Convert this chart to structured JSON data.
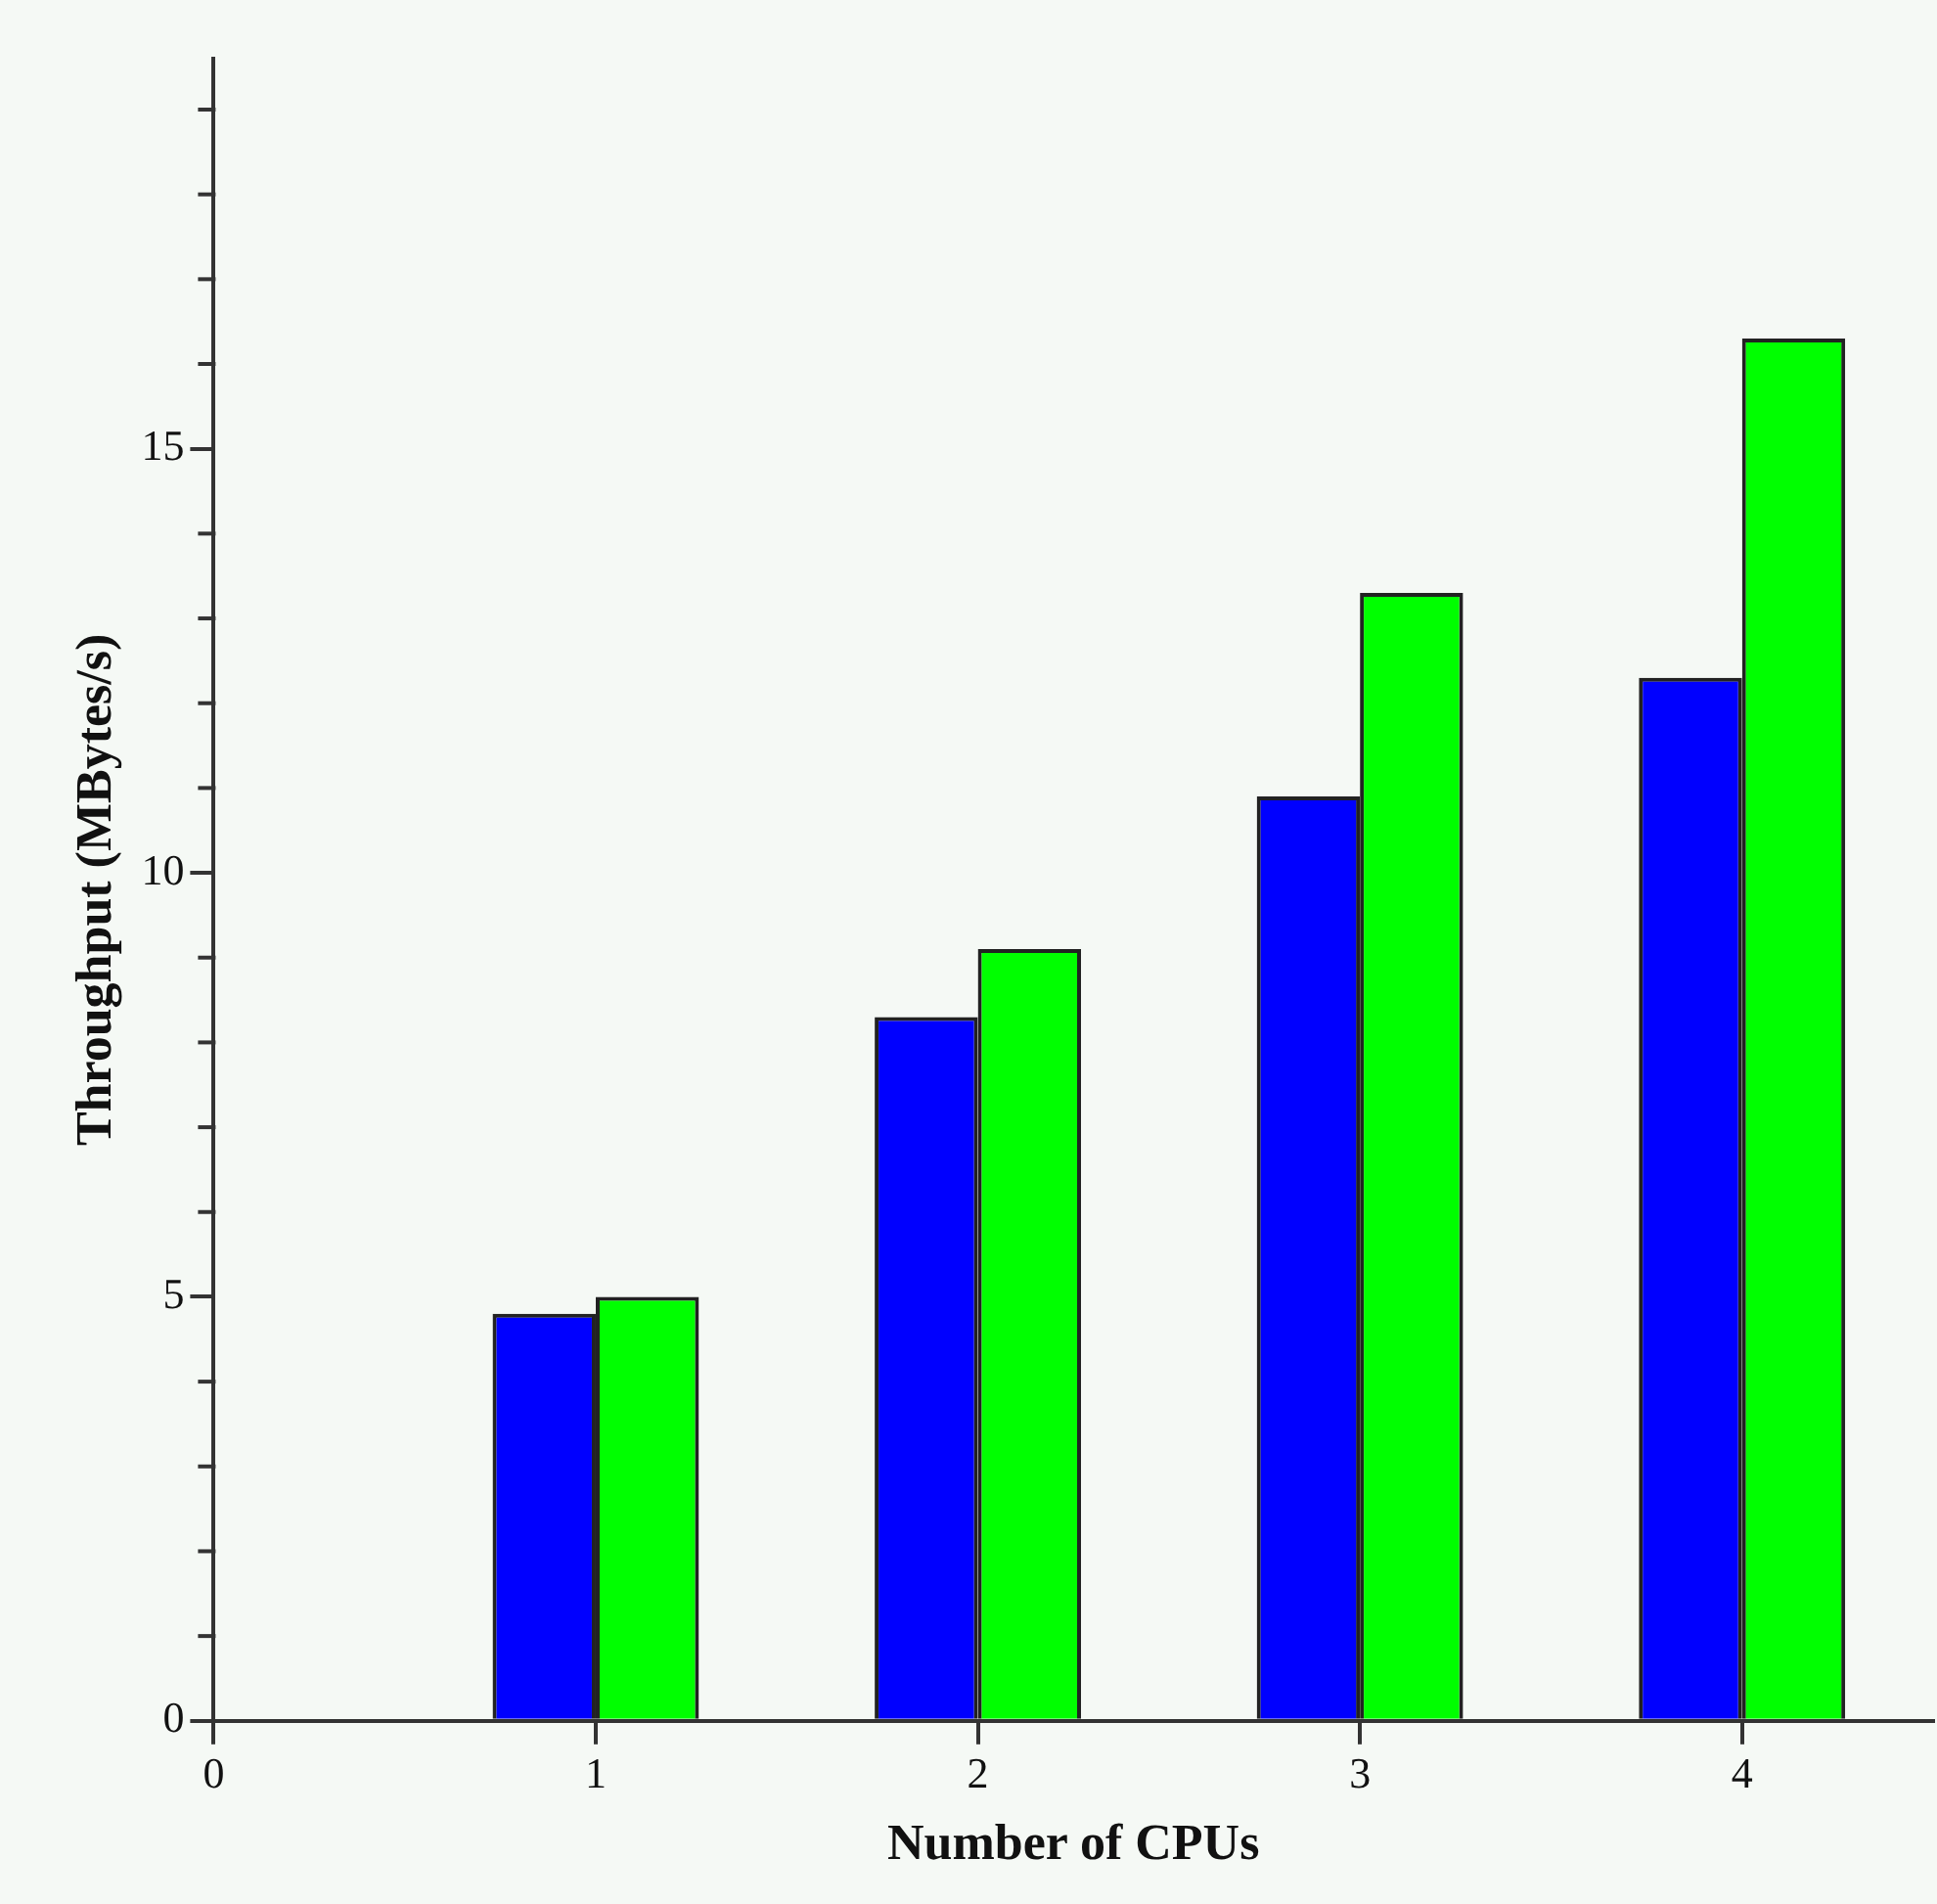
{
  "chart_data": {
    "type": "bar",
    "xlabel": "Number of CPUs",
    "ylabel": "Throughput (MBytes/s)",
    "x": [
      1,
      2,
      3,
      4
    ],
    "series": [
      {
        "color": "#0000ff",
        "values": [
          4.8,
          8.3,
          10.9,
          12.3
        ]
      },
      {
        "color": "#00ff00",
        "values": [
          5.0,
          9.1,
          13.3,
          16.3
        ]
      }
    ],
    "xlim": [
      0,
      4.5
    ],
    "xticks": [
      0,
      1,
      2,
      3,
      4
    ],
    "ylim": [
      0,
      19.6
    ],
    "yticks": [
      0,
      {
        "value": 1,
        "label": null
      },
      {
        "value": 2,
        "label": null
      },
      {
        "value": 3,
        "label": null
      },
      {
        "value": 4,
        "label": null
      },
      5,
      {
        "value": 6,
        "label": null
      },
      {
        "value": 7,
        "label": null
      },
      {
        "value": 8,
        "label": null
      },
      {
        "value": 9,
        "label": null
      },
      10,
      {
        "value": 11,
        "label": null
      },
      {
        "value": 12,
        "label": null
      },
      {
        "value": 13,
        "label": null
      },
      {
        "value": 14,
        "label": null
      },
      15,
      {
        "value": 16,
        "label": null
      },
      {
        "value": 17,
        "label": null
      },
      {
        "value": 18,
        "label": null
      },
      {
        "value": 19,
        "label": null
      }
    ],
    "grid": false,
    "legend": false
  }
}
